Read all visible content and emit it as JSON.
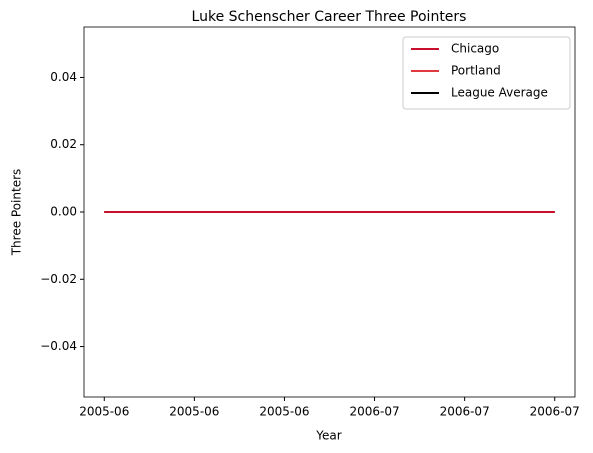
{
  "chart_data": {
    "type": "line",
    "title": "Luke Schenscher Career Three Pointers",
    "xlabel": "Year",
    "ylabel": "Three Pointers",
    "x": [
      "2005-06",
      "2006-07"
    ],
    "series": [
      {
        "name": "Chicago",
        "color": "#c8102e",
        "values": [
          0,
          0
        ]
      },
      {
        "name": "Portland",
        "color": "#e03a3e",
        "values": [
          0,
          0
        ]
      },
      {
        "name": "League Average",
        "color": "#000000",
        "values": [
          0,
          0
        ]
      }
    ],
    "xlim": [
      -0.045,
      1.045
    ],
    "xticks": [
      {
        "value": 0,
        "label": "2005-06"
      },
      {
        "value": 0.2,
        "label": "2005-06"
      },
      {
        "value": 0.4,
        "label": "2005-06"
      },
      {
        "value": 0.6,
        "label": "2006-07"
      },
      {
        "value": 0.8,
        "label": "2006-07"
      },
      {
        "value": 1,
        "label": "2006-07"
      }
    ],
    "ylim": [
      -0.055,
      0.055
    ],
    "yticks": [
      {
        "value": -0.04,
        "label": "−0.04"
      },
      {
        "value": -0.02,
        "label": "−0.02"
      },
      {
        "value": 0,
        "label": "0.00"
      },
      0.02,
      0.04
    ],
    "legend": "upper right",
    "grid": false
  }
}
